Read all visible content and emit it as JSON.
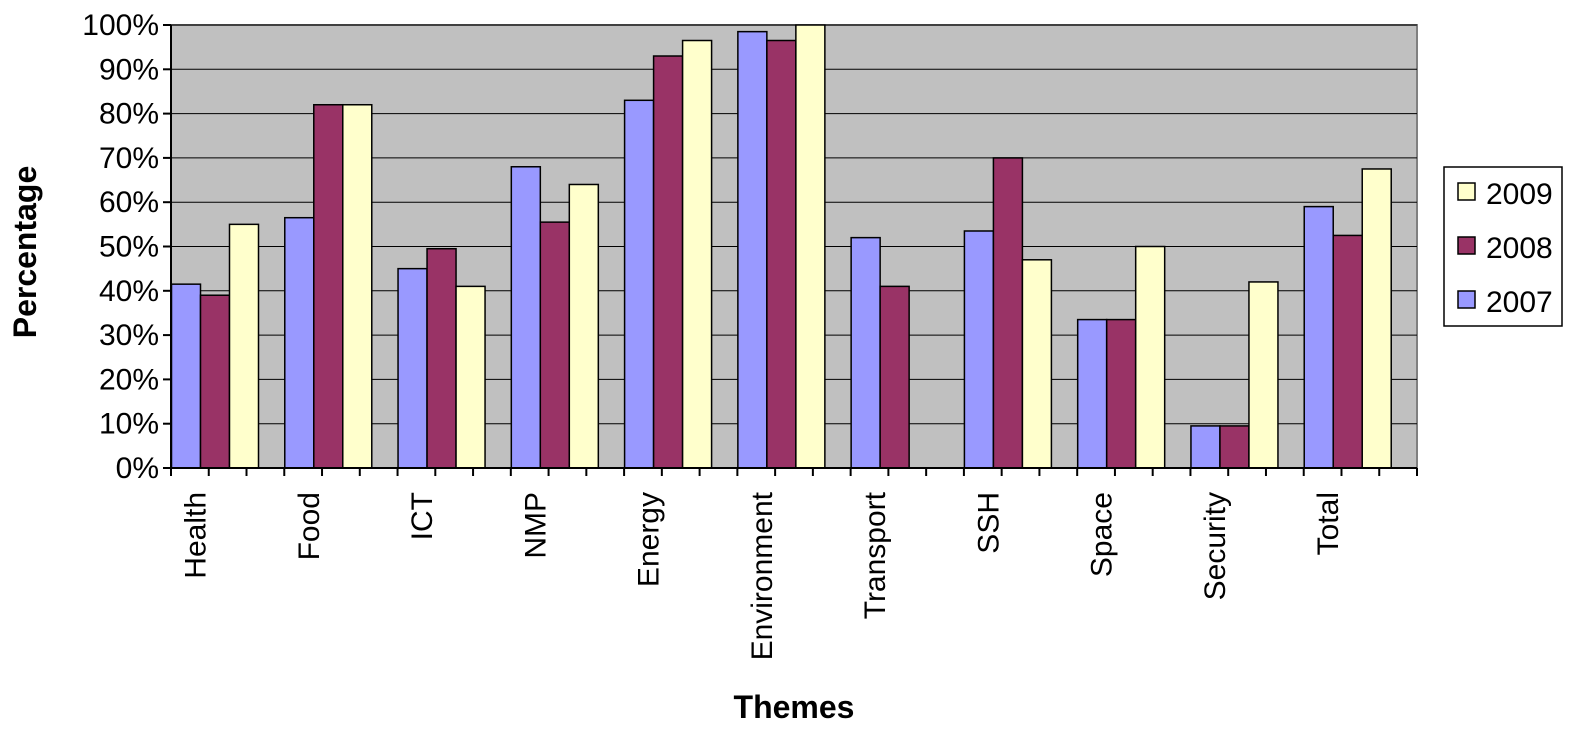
{
  "chart_data": {
    "type": "bar",
    "xlabel": "Themes",
    "ylabel": "Percentage",
    "ylim": [
      0,
      100
    ],
    "y_ticks": [
      "0%",
      "10%",
      "20%",
      "30%",
      "40%",
      "50%",
      "60%",
      "70%",
      "80%",
      "90%",
      "100%"
    ],
    "grid": true,
    "plot_background": "#C0C0C0",
    "legend_position": "right",
    "legend_order": [
      "2009",
      "2008",
      "2007"
    ],
    "categories": [
      "Health",
      "Food",
      "ICT",
      "NMP",
      "Energy",
      "Environment",
      "Transport",
      "SSH",
      "Space",
      "Security",
      "Total"
    ],
    "series": [
      {
        "name": "2007",
        "color": "#9999FF",
        "values": [
          41.5,
          56.5,
          45,
          68,
          83,
          98.5,
          52,
          53.5,
          33.5,
          9.5,
          59
        ]
      },
      {
        "name": "2008",
        "color": "#993366",
        "values": [
          39,
          82,
          49.5,
          55.5,
          93,
          96.5,
          41,
          70,
          33.5,
          9.5,
          52.5
        ]
      },
      {
        "name": "2009",
        "color": "#FFFFCC",
        "values": [
          55,
          82,
          41,
          64,
          96.5,
          100,
          null,
          47,
          50,
          42,
          67.5
        ]
      }
    ]
  }
}
